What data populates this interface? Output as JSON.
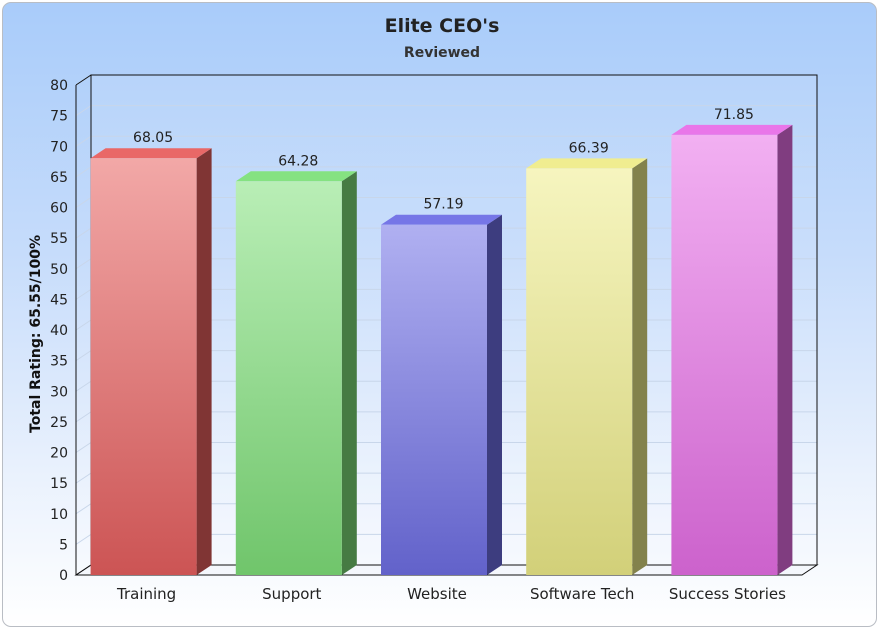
{
  "chart_data": {
    "type": "bar",
    "title": "Elite CEO's",
    "subtitle": "Reviewed",
    "ylabel": "Total Rating: 65.55/100%",
    "xlabel": "",
    "categories": [
      "Training",
      "Support",
      "Website",
      "Software Tech",
      "Success Stories"
    ],
    "values": [
      68.05,
      64.28,
      57.19,
      66.39,
      71.85
    ],
    "ylim": [
      0,
      80
    ],
    "ytick_step": 5,
    "grid": true,
    "legend": "none",
    "colors": [
      "#e8605f",
      "#7fe07a",
      "#6f6fe6",
      "#efec8a",
      "#e86fe8"
    ]
  }
}
